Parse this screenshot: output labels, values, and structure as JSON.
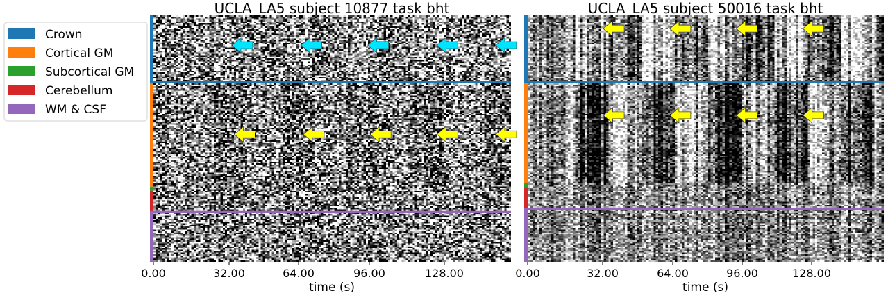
{
  "chart_data": {
    "type": "heatmap",
    "legend": {
      "placement": "top-left outside",
      "entries": [
        {
          "label": "Crown",
          "color": "#1f77b4"
        },
        {
          "label": "Cortical GM",
          "color": "#ff7f0e"
        },
        {
          "label": "Subcortical GM",
          "color": "#2ca02c"
        },
        {
          "label": "Cerebellum",
          "color": "#d62728"
        },
        {
          "label": "WM & CSF",
          "color": "#9467bd"
        }
      ]
    },
    "panels": [
      {
        "title": "UCLA_LA5 subject 10877 task bht",
        "xlabel": "time (s)",
        "xticks": [
          "0.00",
          "32.00",
          "64.00",
          "96.00",
          "128.00"
        ],
        "tick_values": [
          0,
          32,
          64,
          96,
          128
        ],
        "xlim": [
          0,
          150
        ],
        "segment_fractions": [
          0.27,
          0.425,
          0.017,
          0.086,
          0.202
        ],
        "block_period_s": 28,
        "block_start_s": 25,
        "block_len_s": 14,
        "noise_level": 0.78,
        "arrows": [
          {
            "color": "#00e5ff",
            "row": "Crown",
            "times": [
              37,
              66,
              94,
              123,
              151
            ]
          },
          {
            "color": "#ffff00",
            "row": "Cortical GM",
            "times": [
              38,
              67,
              95,
              123,
              151
            ]
          }
        ]
      },
      {
        "title": "UCLA_LA5 subject 50016 task bht",
        "xlabel": "time (s)",
        "xticks": [
          "0.00",
          "32.00",
          "64.00",
          "96.00",
          "128.00"
        ],
        "tick_values": [
          0,
          32,
          64,
          96,
          128
        ],
        "xlim": [
          0,
          150
        ],
        "segment_fractions": [
          0.27,
          0.41,
          0.017,
          0.09,
          0.213
        ],
        "block_period_s": 28,
        "block_start_s": 20,
        "block_len_s": 14,
        "noise_level": 0.45,
        "arrows": [
          {
            "color": "#ffff00",
            "row": "Crown",
            "times": [
              36,
              64,
              92,
              120
            ]
          },
          {
            "color": "#ffff00",
            "row": "Cortical GM",
            "times": [
              36,
              64,
              92,
              120
            ]
          }
        ]
      }
    ]
  }
}
